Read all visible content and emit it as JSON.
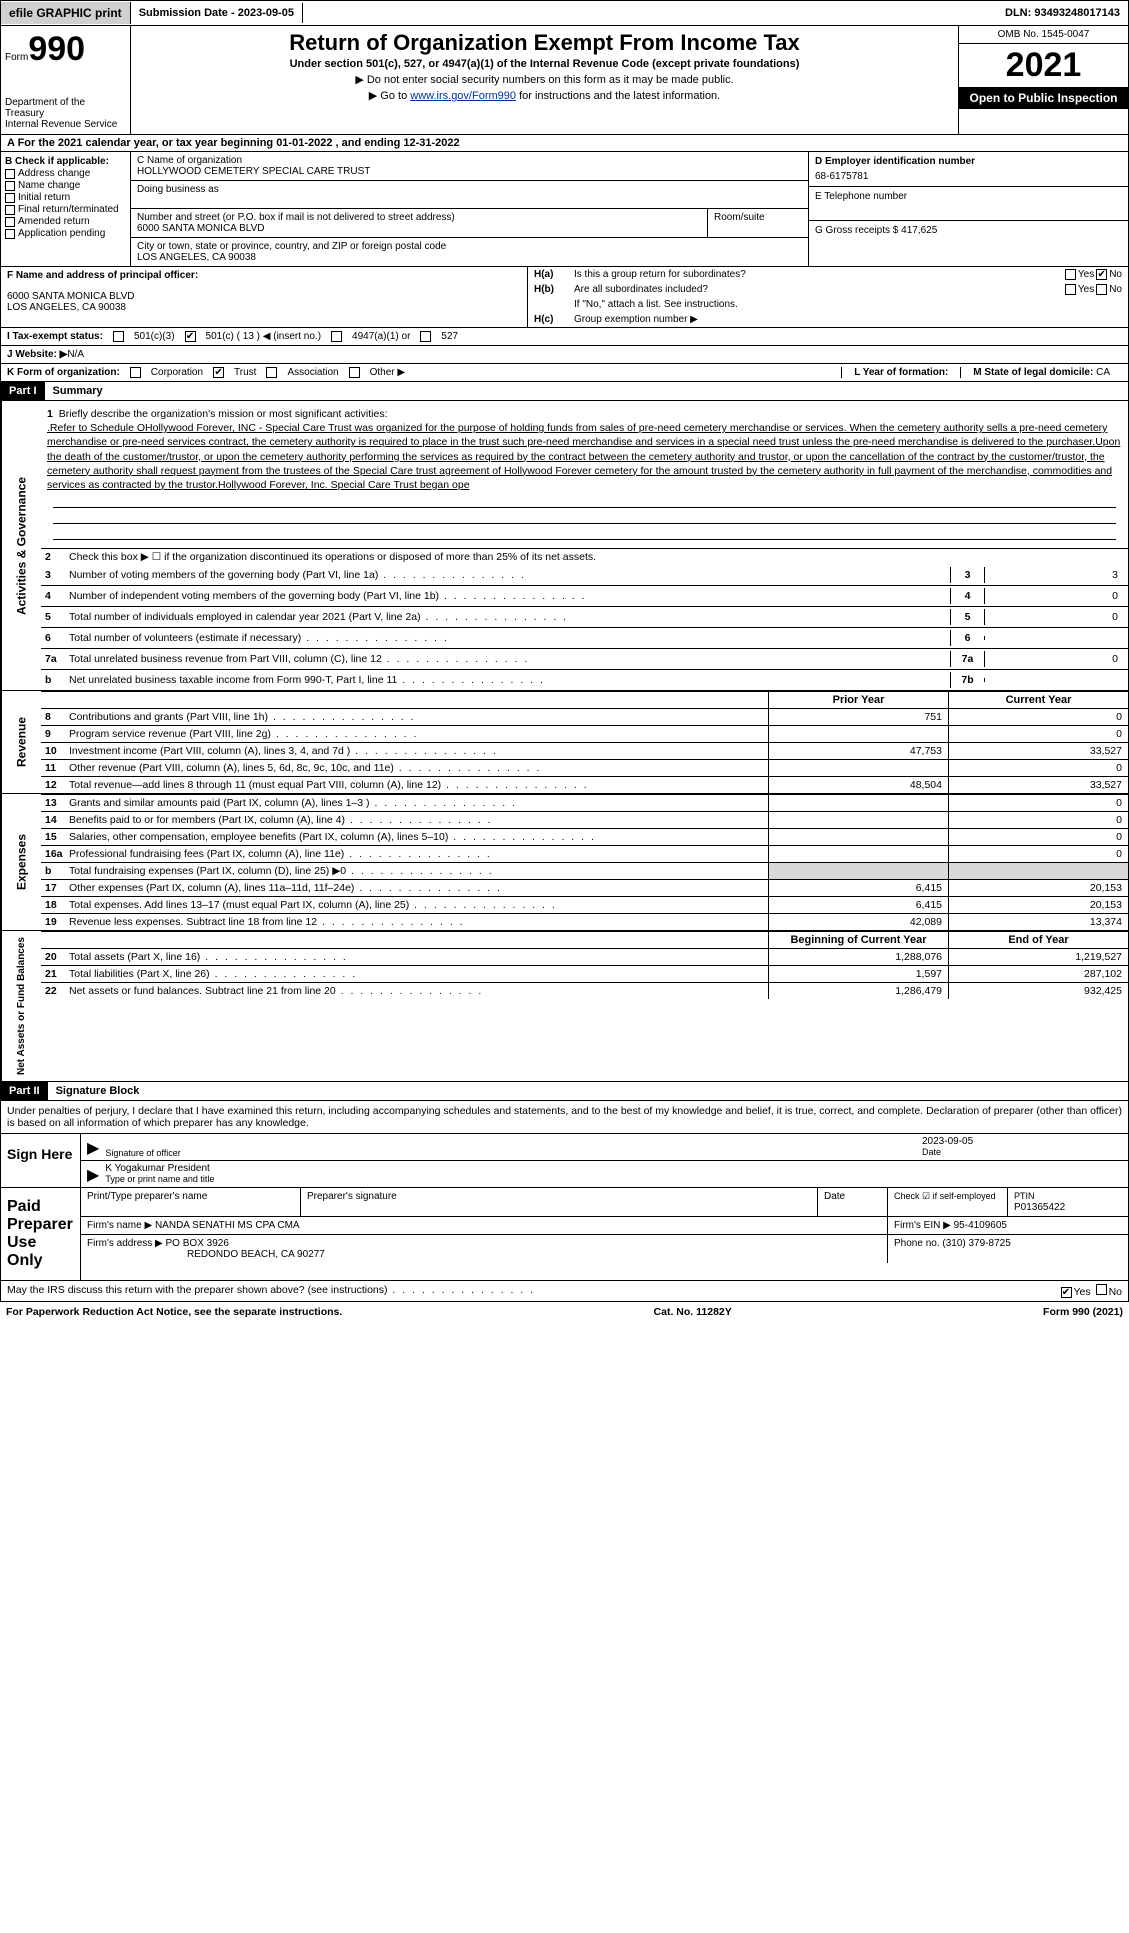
{
  "topbar": {
    "efile": "efile GRAPHIC print",
    "submission_label": "Submission Date - ",
    "submission_date": "2023-09-05",
    "dln_label": "DLN: ",
    "dln": "93493248017143"
  },
  "header": {
    "form_small": "Form",
    "form_big": "990",
    "dept": "Department of the Treasury\nInternal Revenue Service",
    "title": "Return of Organization Exempt From Income Tax",
    "subtitle": "Under section 501(c), 527, or 4947(a)(1) of the Internal Revenue Code (except private foundations)",
    "note1": "▶ Do not enter social security numbers on this form as it may be made public.",
    "note2_pre": "▶ Go to ",
    "note2_link": "www.irs.gov/Form990",
    "note2_post": " for instructions and the latest information.",
    "omb": "OMB No. 1545-0047",
    "year": "2021",
    "inspect": "Open to Public Inspection"
  },
  "row_a": "A For the 2021 calendar year, or tax year beginning 01-01-2022   , and ending 12-31-2022",
  "col_b": {
    "label": "B Check if applicable:",
    "items": [
      "Address change",
      "Name change",
      "Initial return",
      "Final return/terminated",
      "Amended return",
      "Application pending"
    ]
  },
  "col_c": {
    "name_label": "C Name of organization",
    "name": "HOLLYWOOD CEMETERY SPECIAL CARE TRUST",
    "dba_label": "Doing business as",
    "addr_label": "Number and street (or P.O. box if mail is not delivered to street address)",
    "addr": "6000 SANTA MONICA BLVD",
    "room_label": "Room/suite",
    "city_label": "City or town, state or province, country, and ZIP or foreign postal code",
    "city": "LOS ANGELES, CA  90038"
  },
  "col_d": {
    "d_label": "D Employer identification number",
    "ein": "68-6175781",
    "e_label": "E Telephone number",
    "g_label": "G Gross receipts $ ",
    "g_val": "417,625"
  },
  "row_f": {
    "f_label": "F  Name and address of principal officer:",
    "f_addr1": "6000 SANTA MONICA BLVD",
    "f_addr2": "LOS ANGELES, CA  90038",
    "ha_label": "H(a)",
    "ha_text": "Is this a group return for subordinates?",
    "hb_label": "H(b)",
    "hb_text": "Are all subordinates included?",
    "hb_note": "If \"No,\" attach a list. See instructions.",
    "hc_label": "H(c)",
    "hc_text": "Group exemption number ▶",
    "yes": "Yes",
    "no": "No"
  },
  "row_i": {
    "label": "I   Tax-exempt status:",
    "o501c3": "501(c)(3)",
    "o501c": "501(c) ( 13 ) ◀ (insert no.)",
    "o4947": "4947(a)(1) or",
    "o527": "527"
  },
  "row_j": {
    "label": "J  Website: ▶",
    "val": "  N/A"
  },
  "row_k": {
    "label": "K Form of organization:",
    "corp": "Corporation",
    "trust": "Trust",
    "assoc": "Association",
    "other": "Other ▶",
    "l_label": "L Year of formation:",
    "m_label": "M State of legal domicile: ",
    "m_val": "CA"
  },
  "part1": {
    "hdr": "Part I",
    "title": "Summary"
  },
  "section_ag": {
    "tab": "Activities & Governance",
    "l1_label": "1",
    "l1_intro": "Briefly describe the organization's mission or most significant activities:",
    "l1_text": ".Refer to Schedule OHollywood Forever, INC - Special Care Trust was organized for the purpose of holding funds from sales of pre-need cemetery merchandise or services. When the cemetery authority sells a pre-need cemetery merchandise or pre-need services contract, the cemetery authority is required to place in the trust such pre-need merchandise and services in a special need trust unless the pre-need merchandise is delivered to the purchaser.Upon the death of the customer/trustor, or upon the cemetery authority performing the services as required by the contract between the cemetery authority and trustor, or upon the cancellation of the contract by the customer/trustor, the cemetery authority shall request payment from the trustees of the Special Care trust agreement of Hollywood Forever cemetery for the amount trusted by the cemetery authority in full payment of the merchandise, commodities and services as contracted by the trustor.Hollywood Forever, Inc. Special Care Trust began ope",
    "l2": "Check this box ▶ ☐ if the organization discontinued its operations or disposed of more than 25% of its net assets.",
    "lines": [
      {
        "n": "3",
        "d": "Number of voting members of the governing body (Part VI, line 1a)",
        "box": "3",
        "val": "3"
      },
      {
        "n": "4",
        "d": "Number of independent voting members of the governing body (Part VI, line 1b)",
        "box": "4",
        "val": "0"
      },
      {
        "n": "5",
        "d": "Total number of individuals employed in calendar year 2021 (Part V, line 2a)",
        "box": "5",
        "val": "0"
      },
      {
        "n": "6",
        "d": "Total number of volunteers (estimate if necessary)",
        "box": "6",
        "val": ""
      },
      {
        "n": "7a",
        "d": "Total unrelated business revenue from Part VIII, column (C), line 12",
        "box": "7a",
        "val": "0"
      },
      {
        "n": "b",
        "d": "Net unrelated business taxable income from Form 990-T, Part I, line 11",
        "box": "7b",
        "val": ""
      }
    ]
  },
  "section_rev": {
    "tab": "Revenue",
    "hdr_prior": "Prior Year",
    "hdr_curr": "Current Year",
    "lines": [
      {
        "n": "8",
        "d": "Contributions and grants (Part VIII, line 1h)",
        "c1": "751",
        "c2": "0"
      },
      {
        "n": "9",
        "d": "Program service revenue (Part VIII, line 2g)",
        "c1": "",
        "c2": "0"
      },
      {
        "n": "10",
        "d": "Investment income (Part VIII, column (A), lines 3, 4, and 7d )",
        "c1": "47,753",
        "c2": "33,527"
      },
      {
        "n": "11",
        "d": "Other revenue (Part VIII, column (A), lines 5, 6d, 8c, 9c, 10c, and 11e)",
        "c1": "",
        "c2": "0"
      },
      {
        "n": "12",
        "d": "Total revenue—add lines 8 through 11 (must equal Part VIII, column (A), line 12)",
        "c1": "48,504",
        "c2": "33,527"
      }
    ]
  },
  "section_exp": {
    "tab": "Expenses",
    "lines": [
      {
        "n": "13",
        "d": "Grants and similar amounts paid (Part IX, column (A), lines 1–3 )",
        "c1": "",
        "c2": "0"
      },
      {
        "n": "14",
        "d": "Benefits paid to or for members (Part IX, column (A), line 4)",
        "c1": "",
        "c2": "0"
      },
      {
        "n": "15",
        "d": "Salaries, other compensation, employee benefits (Part IX, column (A), lines 5–10)",
        "c1": "",
        "c2": "0"
      },
      {
        "n": "16a",
        "d": "Professional fundraising fees (Part IX, column (A), line 11e)",
        "c1": "",
        "c2": "0"
      },
      {
        "n": "b",
        "d": "Total fundraising expenses (Part IX, column (D), line 25) ▶0",
        "c1": "shade",
        "c2": "shade"
      },
      {
        "n": "17",
        "d": "Other expenses (Part IX, column (A), lines 11a–11d, 11f–24e)",
        "c1": "6,415",
        "c2": "20,153"
      },
      {
        "n": "18",
        "d": "Total expenses. Add lines 13–17 (must equal Part IX, column (A), line 25)",
        "c1": "6,415",
        "c2": "20,153"
      },
      {
        "n": "19",
        "d": "Revenue less expenses. Subtract line 18 from line 12",
        "c1": "42,089",
        "c2": "13,374"
      }
    ]
  },
  "section_na": {
    "tab": "Net Assets or Fund Balances",
    "hdr_prior": "Beginning of Current Year",
    "hdr_curr": "End of Year",
    "lines": [
      {
        "n": "20",
        "d": "Total assets (Part X, line 16)",
        "c1": "1,288,076",
        "c2": "1,219,527"
      },
      {
        "n": "21",
        "d": "Total liabilities (Part X, line 26)",
        "c1": "1,597",
        "c2": "287,102"
      },
      {
        "n": "22",
        "d": "Net assets or fund balances. Subtract line 21 from line 20",
        "c1": "1,286,479",
        "c2": "932,425"
      }
    ]
  },
  "part2": {
    "hdr": "Part II",
    "title": "Signature Block"
  },
  "sig": {
    "text": "Under penalties of perjury, I declare that I have examined this return, including accompanying schedules and statements, and to the best of my knowledge and belief, it is true, correct, and complete. Declaration of preparer (other than officer) is based on all information of which preparer has any knowledge.",
    "sign_here": "Sign Here",
    "sig_officer": "Signature of officer",
    "date_label": "Date",
    "date": "2023-09-05",
    "name": "K Yogakumar  President",
    "name_label": "Type or print name and title"
  },
  "prep": {
    "label": "Paid Preparer Use Only",
    "h1": "Print/Type preparer's name",
    "h2": "Preparer's signature",
    "h3": "Date",
    "h4_check": "Check ☑ if self-employed",
    "h4_ptin_label": "PTIN",
    "h4_ptin": "P01365422",
    "firm_name_label": "Firm's name    ▶ ",
    "firm_name": "NANDA SENATHI MS CPA CMA",
    "firm_ein_label": "Firm's EIN ▶ ",
    "firm_ein": "95-4109605",
    "firm_addr_label": "Firm's address ▶ ",
    "firm_addr1": "PO BOX 3926",
    "firm_addr2": "REDONDO BEACH, CA  90277",
    "phone_label": "Phone no. ",
    "phone": "(310) 379-8725"
  },
  "foot": {
    "discuss": "May the IRS discuss this return with the preparer shown above? (see instructions)",
    "yes": "Yes",
    "no": "No",
    "paperwork": "For Paperwork Reduction Act Notice, see the separate instructions.",
    "cat": "Cat. No. 11282Y",
    "form": "Form 990 (2021)"
  }
}
